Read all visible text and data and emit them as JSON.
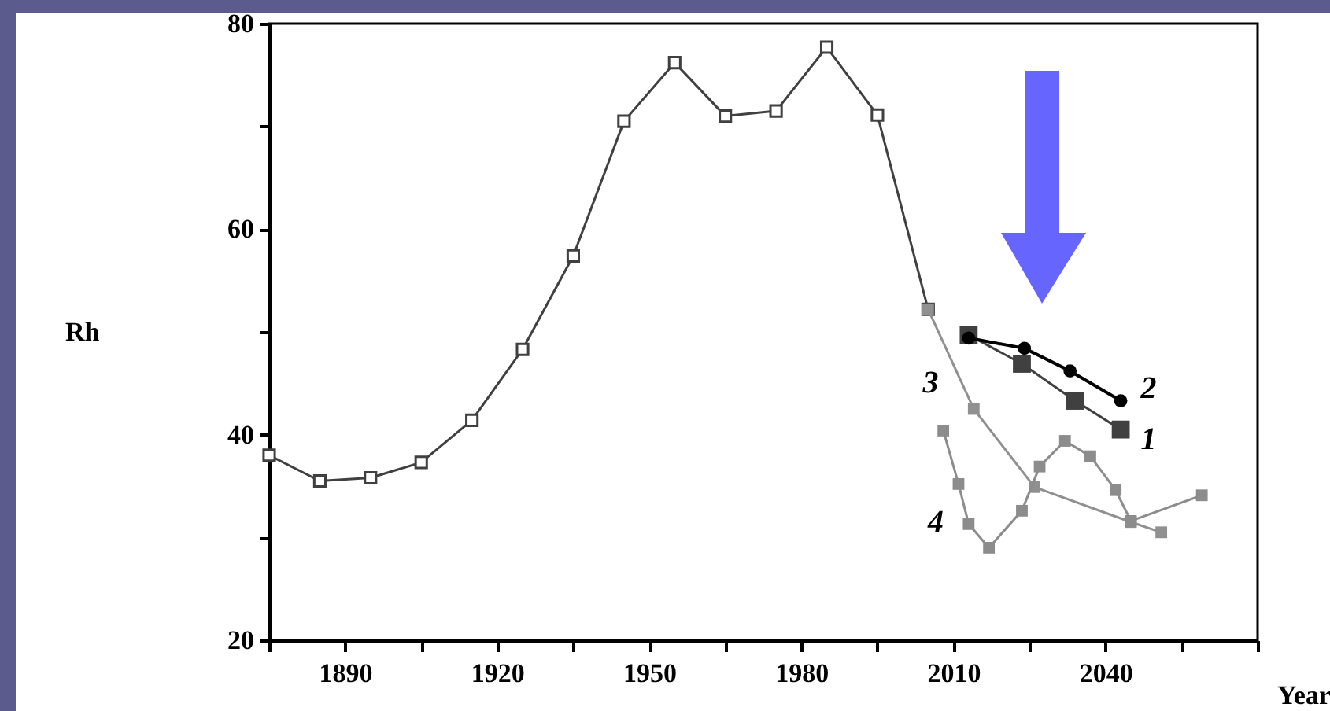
{
  "chart_data": {
    "type": "line",
    "xlabel": "Year",
    "ylabel": "Rh",
    "xlim": [
      1875,
      2070
    ],
    "xticks": [
      {
        "value": 1875,
        "label": null
      },
      1890,
      {
        "value": 1905,
        "label": null
      },
      1920,
      {
        "value": 1935,
        "label": null
      },
      1950,
      {
        "value": 1965,
        "label": null
      },
      1980,
      {
        "value": 1995,
        "label": null
      },
      2010,
      {
        "value": 2025,
        "label": null
      },
      2040,
      {
        "value": 2055,
        "label": null
      },
      {
        "value": 2070,
        "label": null
      }
    ],
    "ylim": [
      20,
      80
    ],
    "yticks": [
      20,
      {
        "value": 30,
        "label": null
      },
      40,
      {
        "value": 50,
        "label": null
      },
      60,
      {
        "value": 70,
        "label": null
      },
      80
    ],
    "grid": false,
    "series": [
      {
        "color": "#404040",
        "marker": "square",
        "x": [
          1875,
          1885,
          1895,
          1905,
          1915,
          1925,
          1935,
          1945,
          1955,
          1965,
          1975,
          1985,
          1995,
          2005
        ],
        "values": [
          38,
          35.5,
          35.8,
          37.3,
          41.4,
          48.3,
          57.4,
          70.5,
          76.2,
          71,
          71.5,
          77.7,
          71.1,
          52.2
        ]
      },
      {
        "name": "1",
        "color": "#404040",
        "marker": "square",
        "x": [
          2013,
          2023.5,
          2034,
          2043
        ],
        "values": [
          49.7,
          46.9,
          43.3,
          40.5
        ]
      },
      {
        "name": "2",
        "color": "#000000",
        "marker": "circle",
        "x": [
          2013,
          2024,
          2033,
          2043
        ],
        "values": [
          49.4,
          48.4,
          46.2,
          43.3
        ]
      },
      {
        "name": "3",
        "color": "#909090",
        "marker": "square",
        "x": [
          2005,
          2014,
          2026,
          2045,
          2051
        ],
        "values": [
          52.2,
          42.5,
          34.9,
          31.5,
          30.5
        ]
      },
      {
        "name": "4",
        "color": "#8c8c8c",
        "marker": "square",
        "x": [
          2008,
          2011,
          2013,
          2017,
          2023.5,
          2027,
          2032,
          2037,
          2042,
          2045,
          2059
        ],
        "values": [
          40.4,
          35.2,
          31.3,
          29,
          32.6,
          36.9,
          39.4,
          37.9,
          34.6,
          31.6,
          34.1
        ]
      }
    ]
  }
}
